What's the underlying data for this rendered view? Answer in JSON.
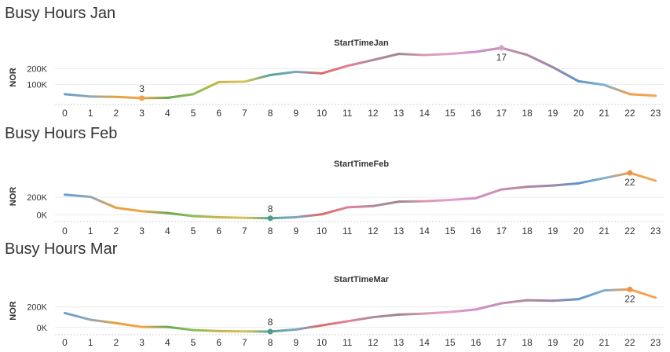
{
  "panels": [
    {
      "title": "Busy Hours Jan"
    },
    {
      "title": "Busy Hours Feb"
    },
    {
      "title": "Busy Hours Mar"
    }
  ],
  "chart_data": [
    {
      "type": "line",
      "title": "StartTimeJan",
      "xlabel": "",
      "ylabel": "NOR",
      "categories": [
        "0",
        "1",
        "2",
        "3",
        "4",
        "5",
        "6",
        "7",
        "8",
        "9",
        "10",
        "11",
        "12",
        "13",
        "14",
        "15",
        "16",
        "17",
        "18",
        "19",
        "20",
        "21",
        "22",
        "23"
      ],
      "yticks": [
        {
          "value": 100000,
          "label": "100K"
        },
        {
          "value": 200000,
          "label": "200K"
        }
      ],
      "ylim": [
        -15000,
        305000
      ],
      "grid": true,
      "values": [
        40000,
        25000,
        23000,
        15000,
        17000,
        40000,
        116000,
        118000,
        160000,
        180000,
        170000,
        217000,
        254000,
        292000,
        285000,
        292000,
        305000,
        330000,
        286000,
        209000,
        121000,
        98000,
        40000,
        30000
      ],
      "annotations": [
        {
          "index": 3,
          "label": "3",
          "position": "above"
        },
        {
          "index": 17,
          "label": "17",
          "position": "below"
        }
      ],
      "highlight_colors": {
        "3": "#f0a04b",
        "17": "#d9a2c8"
      }
    },
    {
      "type": "line",
      "title": "StartTimeFeb",
      "xlabel": "",
      "ylabel": "NOR",
      "categories": [
        "0",
        "1",
        "2",
        "3",
        "4",
        "5",
        "6",
        "7",
        "8",
        "9",
        "10",
        "11",
        "12",
        "13",
        "14",
        "15",
        "16",
        "17",
        "18",
        "19",
        "20",
        "21",
        "22",
        "23"
      ],
      "yticks": [
        {
          "value": 0,
          "label": "0K"
        },
        {
          "value": 200000,
          "label": "200K"
        }
      ],
      "ylim": [
        -60000,
        480000
      ],
      "grid": true,
      "values": [
        230000,
        205000,
        80000,
        40000,
        20000,
        -15000,
        -28000,
        -35000,
        -40000,
        -28000,
        5000,
        85000,
        100000,
        150000,
        155000,
        170000,
        190000,
        290000,
        320000,
        335000,
        360000,
        420000,
        480000,
        390000
      ],
      "annotations": [
        {
          "index": 8,
          "label": "8",
          "position": "above"
        },
        {
          "index": 22,
          "label": "22",
          "position": "below"
        }
      ],
      "highlight_colors": {
        "8": "#4e9a8e",
        "22": "#f0923f"
      }
    },
    {
      "type": "line",
      "title": "StartTimeMar",
      "xlabel": "",
      "ylabel": "NOR",
      "categories": [
        "0",
        "1",
        "2",
        "3",
        "4",
        "5",
        "6",
        "7",
        "8",
        "9",
        "10",
        "11",
        "12",
        "13",
        "14",
        "15",
        "16",
        "17",
        "18",
        "19",
        "20",
        "21",
        "22",
        "23"
      ],
      "yticks": [
        {
          "value": 0,
          "label": "0K"
        },
        {
          "value": 200000,
          "label": "200K"
        }
      ],
      "ylim": [
        -55000,
        380000
      ],
      "grid": true,
      "values": [
        140000,
        75000,
        42000,
        5000,
        5000,
        -25000,
        -35000,
        -38000,
        -40000,
        -20000,
        20000,
        60000,
        100000,
        125000,
        135000,
        150000,
        175000,
        235000,
        265000,
        260000,
        275000,
        360000,
        370000,
        290000
      ],
      "annotations": [
        {
          "index": 8,
          "label": "8",
          "position": "above"
        },
        {
          "index": 22,
          "label": "22",
          "position": "below"
        }
      ],
      "highlight_colors": {
        "8": "#4e9a8e",
        "22": "#f0923f"
      }
    }
  ],
  "colors": {
    "segment_palette": [
      "#6a9ec8",
      "#8fa8bc",
      "#e5a23a",
      "#f1a54a",
      "#6aa84f",
      "#8bbd5a",
      "#c9b54a",
      "#d6c35a",
      "#57a58e",
      "#7aa9c1",
      "#d86a6a",
      "#e47f93",
      "#b08a9f",
      "#a08492",
      "#d79ab2",
      "#e3a0c5",
      "#cf8fcd",
      "#c58fb8",
      "#b0869f",
      "#9f86a9",
      "#5f96c6",
      "#7fb0d6",
      "#f0a04b",
      "#f2a65a"
    ],
    "grid": "#ececec"
  }
}
